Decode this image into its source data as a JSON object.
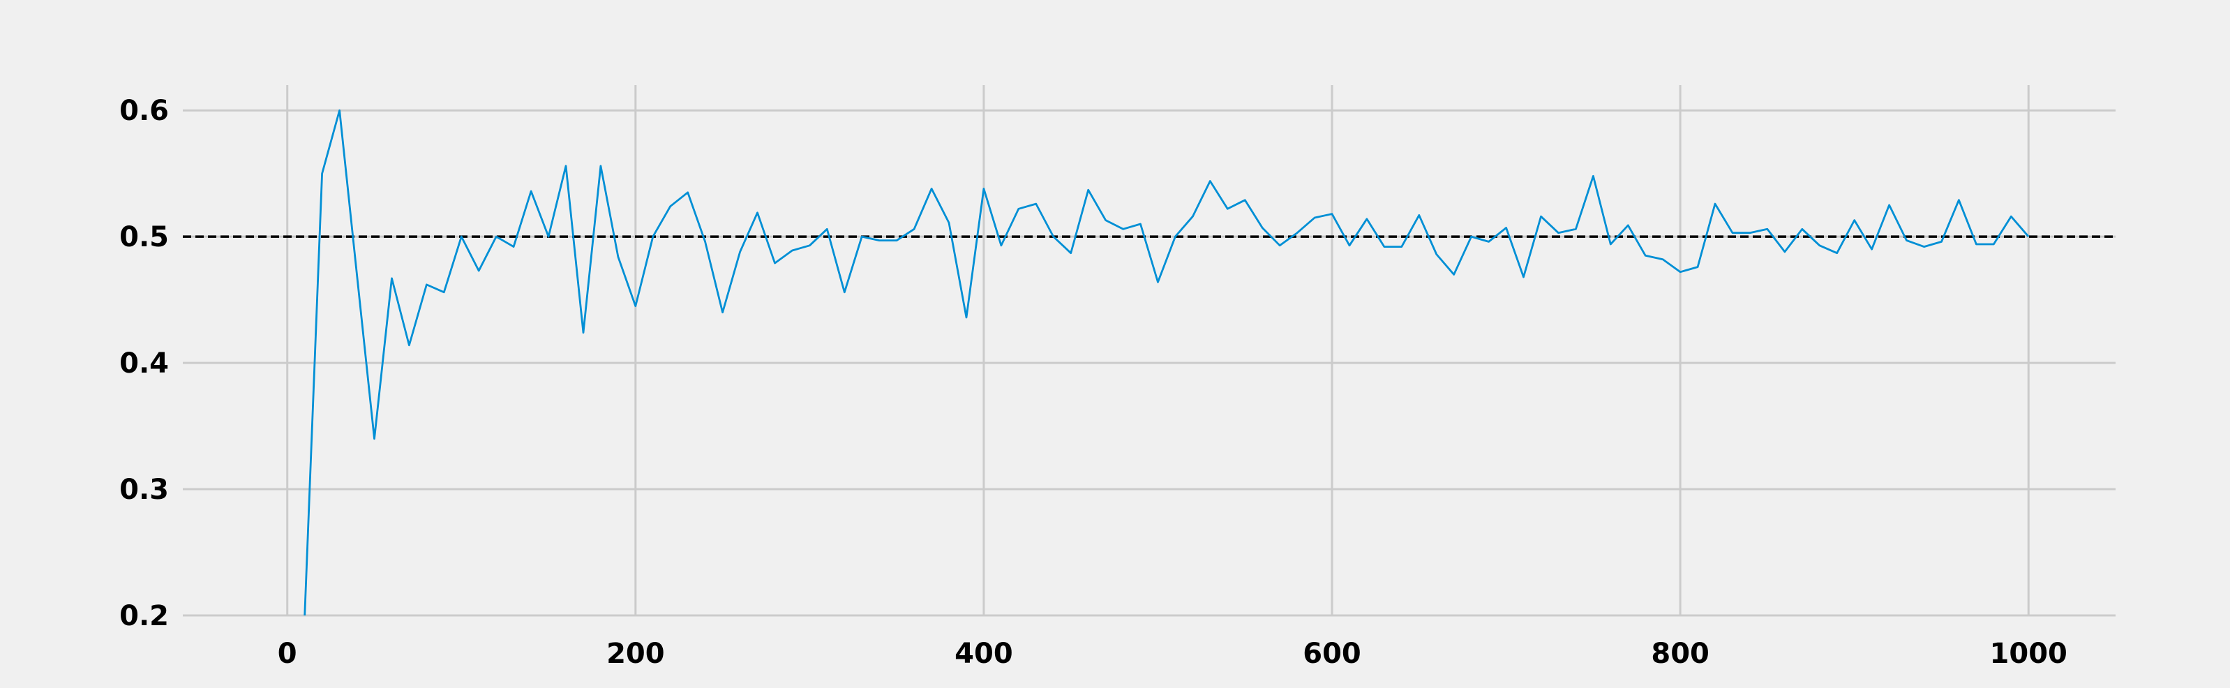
{
  "chart_data": {
    "type": "line",
    "title": "",
    "xlabel": "",
    "ylabel": "",
    "xlim": [
      -60,
      1050
    ],
    "ylim": [
      0.2,
      0.62
    ],
    "grid": true,
    "legend": "none",
    "x_ticks": [
      0,
      200,
      400,
      600,
      800,
      1000
    ],
    "x_tick_labels": [
      "0",
      "200",
      "400",
      "600",
      "800",
      "1000"
    ],
    "y_ticks": [
      0.2,
      0.3,
      0.4,
      0.5,
      0.6
    ],
    "y_tick_labels": [
      "0.2",
      "0.3",
      "0.4",
      "0.5",
      "0.6"
    ],
    "colors": {
      "series": "#008fd5",
      "reference": "#000000",
      "grid": "#cbcbcb",
      "background": "#f0f0f0"
    },
    "reference_line": {
      "y": 0.5,
      "style": "dashed"
    },
    "series": [
      {
        "x": [
          10,
          20,
          30,
          40,
          50,
          60,
          70,
          80,
          90,
          100,
          110,
          120,
          130,
          140,
          150,
          160,
          170,
          180,
          190,
          200,
          210,
          220,
          230,
          240,
          250,
          260,
          270,
          280,
          290,
          300,
          310,
          320,
          330,
          340,
          350,
          360,
          370,
          380,
          390,
          400,
          410,
          420,
          430,
          440,
          450,
          460,
          470,
          480,
          490,
          500,
          510,
          520,
          530,
          540,
          550,
          560,
          570,
          580,
          590,
          600,
          610,
          620,
          630,
          640,
          650,
          660,
          670,
          680,
          690,
          700,
          710,
          720,
          730,
          740,
          750,
          760,
          770,
          780,
          790,
          800,
          810,
          820,
          830,
          840,
          850,
          860,
          870,
          880,
          890,
          900,
          910,
          920,
          930,
          940,
          950,
          960,
          970,
          980,
          990,
          1000
        ],
        "values": [
          0.2,
          0.55,
          0.6,
          0.47,
          0.34,
          0.467,
          0.414,
          0.462,
          0.456,
          0.5,
          0.473,
          0.5,
          0.492,
          0.536,
          0.5,
          0.556,
          0.424,
          0.556,
          0.484,
          0.445,
          0.5,
          0.524,
          0.535,
          0.496,
          0.44,
          0.488,
          0.519,
          0.479,
          0.489,
          0.493,
          0.506,
          0.456,
          0.5,
          0.497,
          0.497,
          0.506,
          0.538,
          0.511,
          0.436,
          0.538,
          0.493,
          0.522,
          0.526,
          0.5,
          0.487,
          0.537,
          0.513,
          0.506,
          0.51,
          0.464,
          0.5,
          0.516,
          0.544,
          0.522,
          0.529,
          0.507,
          0.493,
          0.503,
          0.515,
          0.518,
          0.493,
          0.514,
          0.492,
          0.492,
          0.517,
          0.486,
          0.47,
          0.5,
          0.496,
          0.507,
          0.468,
          0.516,
          0.503,
          0.506,
          0.548,
          0.494,
          0.509,
          0.485,
          0.482,
          0.472,
          0.476,
          0.526,
          0.503,
          0.503,
          0.506,
          0.488,
          0.506,
          0.493,
          0.487,
          0.513,
          0.49,
          0.525,
          0.497,
          0.492,
          0.496,
          0.529,
          0.494,
          0.494,
          0.516,
          0.5
        ]
      }
    ]
  }
}
